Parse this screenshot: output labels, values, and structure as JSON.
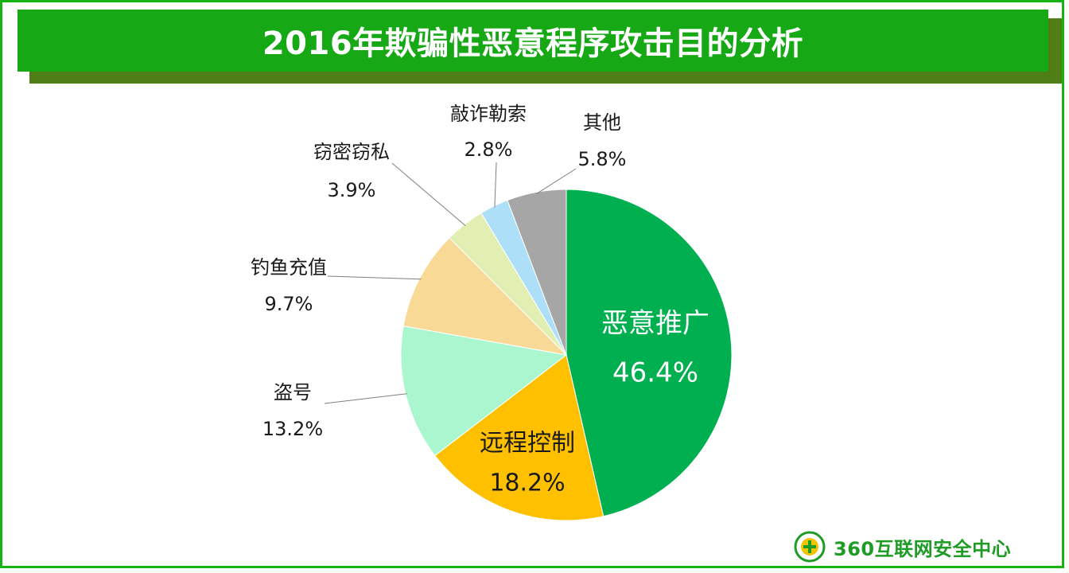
{
  "title": "2016年欺骗性恶意程序攻击目的分析",
  "brand": {
    "logo_text": "360互联网安全中心"
  },
  "colors": {
    "frame": "#16b312",
    "banner": "#16a815",
    "banner_shadow": "#4f7d16",
    "logo": "#1e9c25"
  },
  "chart_data": {
    "type": "pie",
    "title": "2016年欺骗性恶意程序攻击目的分析",
    "start": "12 o'clock",
    "direction": "clockwise",
    "slices": [
      {
        "label": "恶意推广",
        "value": 46.4,
        "value_label": "46.4%",
        "color": "#00b050"
      },
      {
        "label": "远程控制",
        "value": 18.2,
        "value_label": "18.2%",
        "color": "#ffc000"
      },
      {
        "label": "盗号",
        "value": 13.2,
        "value_label": "13.2%",
        "color": "#aaf7cf"
      },
      {
        "label": "钓鱼充值",
        "value": 9.7,
        "value_label": "9.7%",
        "color": "#f9d996"
      },
      {
        "label": "窃密窃私",
        "value": 3.9,
        "value_label": "3.9%",
        "color": "#e1efb3"
      },
      {
        "label": "敲诈勒索",
        "value": 2.8,
        "value_label": "2.8%",
        "color": "#aedff9"
      },
      {
        "label": "其他",
        "value": 5.8,
        "value_label": "5.8%",
        "color": "#a6a6a6"
      }
    ]
  }
}
